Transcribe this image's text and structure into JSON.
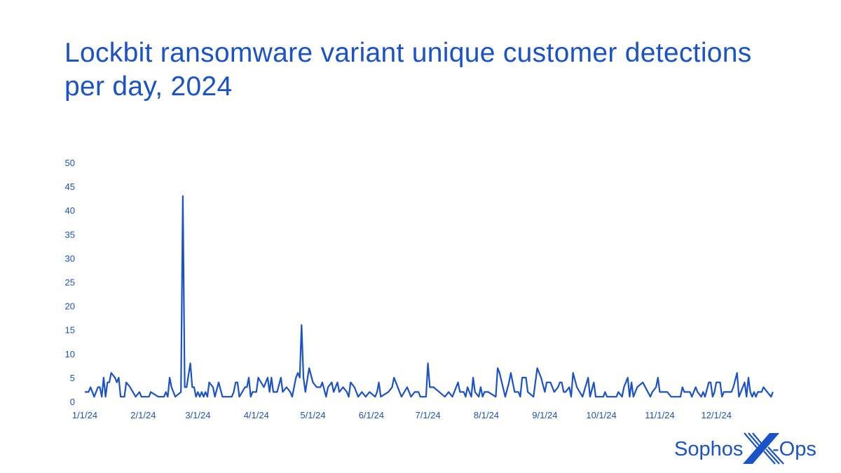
{
  "chart_data": {
    "type": "line",
    "title": "Lockbit ransomware variant unique customer detections per day, 2024",
    "xlabel": "",
    "ylabel": "",
    "xlim": [
      "2024-01-01",
      "2024-12-31"
    ],
    "ylim": [
      0,
      50
    ],
    "grid": false,
    "legend": "none",
    "color": "#1a52c8",
    "y_ticks": [
      "0",
      "5",
      "10",
      "15",
      "20",
      "25",
      "30",
      "35",
      "40",
      "45",
      "50"
    ],
    "x_ticks": [
      {
        "date": "2024-01-01",
        "label": "1/1/24"
      },
      {
        "date": "2024-02-01",
        "label": "2/1/24"
      },
      {
        "date": "2024-03-01",
        "label": "3/1/24"
      },
      {
        "date": "2024-04-01",
        "label": "4/1/24"
      },
      {
        "date": "2024-05-01",
        "label": "5/1/24"
      },
      {
        "date": "2024-06-01",
        "label": "6/1/24"
      },
      {
        "date": "2024-07-01",
        "label": "7/1/24"
      },
      {
        "date": "2024-08-01",
        "label": "8/1/24"
      },
      {
        "date": "2024-09-01",
        "label": "9/1/24"
      },
      {
        "date": "2024-10-01",
        "label": "10/1/24"
      },
      {
        "date": "2024-11-01",
        "label": "11/1/24"
      },
      {
        "date": "2024-12-01",
        "label": "12/1/24"
      }
    ],
    "series": [
      {
        "x": [
          "01-01",
          "01-03",
          "01-04",
          "01-06",
          "01-08",
          "01-09",
          "01-10",
          "01-11",
          "01-12",
          "01-13",
          "01-14",
          "01-15",
          "01-17",
          "01-18",
          "01-19",
          "01-20",
          "01-22",
          "01-23",
          "01-25",
          "01-28",
          "01-30",
          "01-31",
          "02-04",
          "02-05",
          "02-09",
          "02-12",
          "02-13",
          "02-14",
          "02-15",
          "02-16",
          "02-18",
          "02-21",
          "02-22",
          "02-23",
          "02-24",
          "02-26",
          "02-27",
          "02-28",
          "02-29",
          "03-01",
          "03-02",
          "03-03",
          "03-04",
          "03-05",
          "03-06",
          "03-07",
          "03-09",
          "03-10",
          "03-12",
          "03-14",
          "03-19",
          "03-20",
          "03-21",
          "03-22",
          "03-23",
          "03-26",
          "03-27",
          "03-28",
          "03-29",
          "03-30",
          "04-01",
          "04-02",
          "04-05",
          "04-06",
          "04-07",
          "04-08",
          "04-09",
          "04-10",
          "04-12",
          "04-14",
          "04-15",
          "04-17",
          "04-19",
          "04-20",
          "04-22",
          "04-23",
          "04-24",
          "04-25",
          "04-26",
          "04-27",
          "04-29",
          "05-01",
          "05-03",
          "05-05",
          "05-06",
          "05-08",
          "05-09",
          "05-11",
          "05-12",
          "05-14",
          "05-15",
          "05-17",
          "05-19",
          "05-20",
          "05-21",
          "05-23",
          "05-25",
          "05-27",
          "05-29",
          "05-31",
          "06-03",
          "06-04",
          "06-05",
          "06-06",
          "06-10",
          "06-12",
          "06-13",
          "06-15",
          "06-16",
          "06-17",
          "06-20",
          "06-22",
          "06-24",
          "06-26",
          "06-27",
          "06-30",
          "07-01",
          "07-02",
          "07-04",
          "07-10",
          "07-12",
          "07-14",
          "07-17",
          "07-18",
          "07-20",
          "07-21",
          "07-22",
          "07-24",
          "07-25",
          "07-26",
          "07-28",
          "07-29",
          "07-30",
          "07-31",
          "08-02",
          "08-06",
          "08-07",
          "08-08",
          "08-11",
          "08-13",
          "08-14",
          "08-16",
          "08-18",
          "08-19",
          "08-20",
          "08-22",
          "08-23",
          "08-26",
          "08-28",
          "08-30",
          "09-01",
          "09-02",
          "09-04",
          "09-05",
          "09-06",
          "09-08",
          "09-09",
          "09-10",
          "09-11",
          "09-12",
          "09-14",
          "09-15",
          "09-16",
          "09-18",
          "09-21",
          "09-24",
          "09-25",
          "09-27",
          "09-28",
          "10-02",
          "10-03",
          "10-04",
          "10-09",
          "10-10",
          "10-12",
          "10-13",
          "10-15",
          "10-16",
          "10-17",
          "10-18",
          "10-20",
          "10-23",
          "10-27",
          "10-28",
          "10-30",
          "10-31",
          "11-01",
          "11-05",
          "11-07",
          "11-12",
          "11-13",
          "11-14",
          "11-17",
          "11-18",
          "11-20",
          "11-21",
          "11-23",
          "11-24",
          "11-25",
          "11-27",
          "11-28",
          "11-29",
          "11-30",
          "12-01",
          "12-03",
          "12-04",
          "12-05",
          "12-09",
          "12-10",
          "12-12",
          "12-13",
          "12-15",
          "12-16",
          "12-17",
          "12-18",
          "12-19",
          "12-20",
          "12-21",
          "12-22",
          "12-23",
          "12-25",
          "12-26",
          "12-28",
          "12-30",
          "12-31"
        ],
        "y": [
          2,
          2,
          3,
          1,
          3,
          3,
          1,
          5,
          1,
          4,
          4,
          6,
          5,
          4,
          5,
          1,
          1,
          4,
          3,
          1,
          2,
          1,
          1,
          2,
          1,
          1,
          2,
          1,
          5,
          3,
          1,
          2,
          43,
          3,
          3,
          8,
          3,
          3,
          1,
          2,
          1,
          2,
          1,
          2,
          1,
          4,
          3,
          1,
          4,
          1,
          1,
          2,
          4,
          4,
          1,
          3,
          3,
          5,
          1,
          2,
          2,
          5,
          3,
          4,
          5,
          2,
          5,
          2,
          2,
          5,
          2,
          3,
          2,
          1,
          5,
          6,
          5,
          16,
          5,
          2,
          7,
          4,
          3,
          3,
          4,
          1,
          3,
          4,
          2,
          4,
          2,
          3,
          2,
          1,
          4,
          3,
          1,
          2,
          1,
          2,
          1,
          2,
          4,
          1,
          2,
          3,
          5,
          3,
          2,
          1,
          3,
          1,
          2,
          2,
          1,
          1,
          8,
          3,
          3,
          1,
          2,
          1,
          4,
          2,
          2,
          1,
          3,
          1,
          5,
          2,
          1,
          3,
          1,
          2,
          2,
          1,
          7,
          6,
          1,
          4,
          6,
          2,
          2,
          1,
          5,
          5,
          2,
          1,
          7,
          5,
          2,
          4,
          4,
          3,
          2,
          3,
          4,
          4,
          2,
          2,
          3,
          1,
          6,
          3,
          1,
          5,
          1,
          4,
          1,
          1,
          2,
          1,
          1,
          2,
          1,
          3,
          5,
          1,
          4,
          1,
          3,
          4,
          1,
          2,
          3,
          5,
          2,
          2,
          1,
          1,
          3,
          2,
          2,
          1,
          3,
          2,
          1,
          2,
          1,
          4,
          4,
          1,
          2,
          4,
          4,
          1,
          2,
          2,
          3,
          6,
          1,
          3,
          4,
          1,
          5,
          2,
          1,
          2,
          1,
          2,
          2,
          3,
          2,
          1,
          2
        ]
      }
    ]
  },
  "logo": {
    "text_left": "Sophos",
    "text_right": "-Ops",
    "mark": "X"
  }
}
